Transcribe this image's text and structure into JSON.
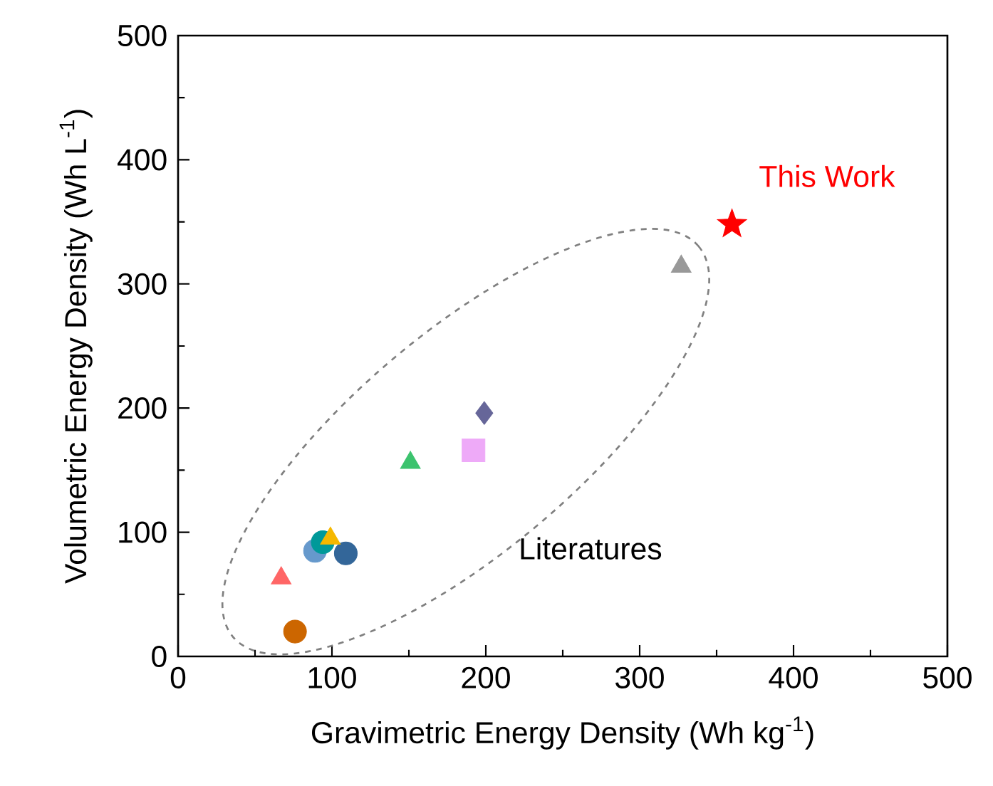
{
  "chart_data": {
    "type": "scatter",
    "xlabel": "Gravimetric Energy Density (Wh kg$^{-1}$)",
    "ylabel": "Volumetric Energy Density (Wh L$^{-1}$)",
    "xlim": [
      0,
      500
    ],
    "ylim": [
      0,
      500
    ],
    "xticks": [
      0,
      100,
      200,
      300,
      400,
      500
    ],
    "yticks": [
      0,
      100,
      200,
      300,
      400,
      500
    ],
    "grid": false,
    "series": [
      {
        "color": "#ff0000",
        "marker": "star",
        "x": [
          360
        ],
        "values": [
          348
        ]
      },
      {
        "color": "#999999",
        "marker": "triangle",
        "x": [
          327
        ],
        "values": [
          314
        ]
      },
      {
        "color": "#666699",
        "marker": "diamond",
        "x": [
          199
        ],
        "values": [
          196
        ]
      },
      {
        "color": "#eeaaf8",
        "marker": "square",
        "x": [
          192
        ],
        "values": [
          166
        ]
      },
      {
        "color": "#3cc36e",
        "marker": "triangle",
        "x": [
          151
        ],
        "values": [
          156
        ]
      },
      {
        "color": "#6699cc",
        "marker": "circle",
        "x": [
          89
        ],
        "values": [
          85
        ]
      },
      {
        "color": "#009999",
        "marker": "circle",
        "x": [
          94
        ],
        "values": [
          92
        ]
      },
      {
        "color": "#336699",
        "marker": "circle",
        "x": [
          109
        ],
        "values": [
          83
        ]
      },
      {
        "color": "#ff6666",
        "marker": "triangle",
        "x": [
          67
        ],
        "values": [
          63
        ]
      },
      {
        "color": "#cc6600",
        "marker": "circle",
        "x": [
          76
        ],
        "values": [
          20
        ]
      },
      {
        "color": "#f5b800",
        "marker": "triangle",
        "x": [
          99
        ],
        "values": [
          95
        ]
      }
    ],
    "annotations": [
      {
        "text": "This Work",
        "x": 360,
        "y": 348
      },
      "Literatures"
    ]
  }
}
